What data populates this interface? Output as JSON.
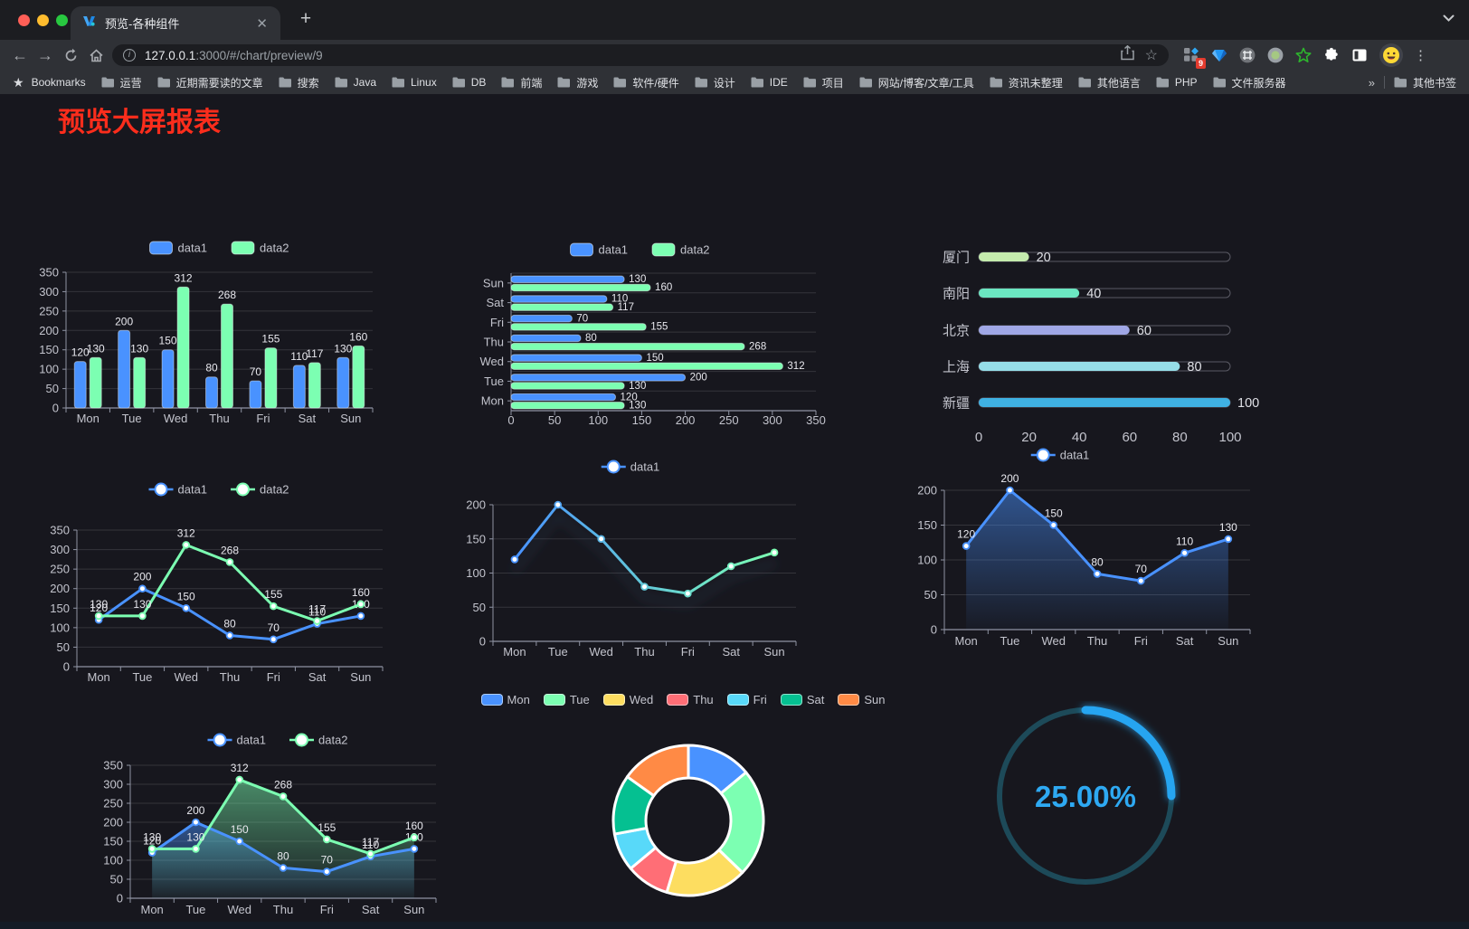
{
  "browser": {
    "tab_title": "预览-各种组件",
    "new_tab_label": "+",
    "url_host": "127.0.0.1",
    "url_rest": ":3000/#/chart/preview/9",
    "bookmarks_label": "Bookmarks",
    "bookmark_folders": [
      "运营",
      "近期需要读的文章",
      "搜索",
      "Java",
      "Linux",
      "DB",
      "前端",
      "游戏",
      "软件/硬件",
      "设计",
      "IDE",
      "项目",
      "网站/博客/文章/工具",
      "资讯未整理",
      "其他语言",
      "PHP",
      "文件服务器"
    ],
    "overflow_indicator": "»",
    "other_bookmarks_label": "其他书签",
    "extension_badge_count": "9"
  },
  "page": {
    "title": "预览大屏报表",
    "title_color": "#fb2d1c",
    "background": "#17171e"
  },
  "chart_data": [
    {
      "id": "bar-grouped",
      "type": "bar",
      "categories": [
        "Mon",
        "Tue",
        "Wed",
        "Thu",
        "Fri",
        "Sat",
        "Sun"
      ],
      "series": [
        {
          "name": "data1",
          "color": "#4992ff",
          "values": [
            120,
            200,
            150,
            80,
            70,
            110,
            130
          ]
        },
        {
          "name": "data2",
          "color": "#7cffb2",
          "values": [
            130,
            130,
            312,
            268,
            155,
            117,
            160
          ]
        }
      ],
      "ylim": [
        0,
        350
      ],
      "ytick": 50,
      "legend_position": "top",
      "value_labels": true,
      "grid": true
    },
    {
      "id": "bar-horizontal",
      "type": "bar-horizontal",
      "categories": [
        "Mon",
        "Tue",
        "Wed",
        "Thu",
        "Fri",
        "Sat",
        "Sun"
      ],
      "series": [
        {
          "name": "data1",
          "color": "#4992ff",
          "values": [
            120,
            200,
            150,
            80,
            70,
            110,
            130
          ]
        },
        {
          "name": "data2",
          "color": "#7cffb2",
          "values": [
            130,
            130,
            312,
            268,
            155,
            117,
            160
          ]
        }
      ],
      "xlim": [
        0,
        350
      ],
      "xtick": 50,
      "legend_position": "top",
      "value_labels": true,
      "grid": true
    },
    {
      "id": "city-progress",
      "type": "progress",
      "max": 100,
      "axis_ticks": [
        0,
        20,
        40,
        60,
        80,
        100
      ],
      "rows": [
        {
          "label": "厦门",
          "value": 20,
          "color": "#c4ebad"
        },
        {
          "label": "南阳",
          "value": 40,
          "color": "#6be6c1"
        },
        {
          "label": "北京",
          "value": 60,
          "color": "#a0a7e6"
        },
        {
          "label": "上海",
          "value": 80,
          "color": "#96dee8"
        },
        {
          "label": "新疆",
          "value": 100,
          "color": "#3fb1e3"
        }
      ]
    },
    {
      "id": "line-two",
      "type": "line",
      "categories": [
        "Mon",
        "Tue",
        "Wed",
        "Thu",
        "Fri",
        "Sat",
        "Sun"
      ],
      "series": [
        {
          "name": "data1",
          "color": "#4992ff",
          "values": [
            120,
            200,
            150,
            80,
            70,
            110,
            130
          ]
        },
        {
          "name": "data2",
          "color": "#7cffb2",
          "values": [
            130,
            130,
            312,
            268,
            155,
            117,
            160
          ]
        }
      ],
      "ylim": [
        0,
        350
      ],
      "ytick": 50,
      "legend_position": "top",
      "value_labels": true,
      "grid": true
    },
    {
      "id": "line-gradient",
      "type": "line",
      "categories": [
        "Mon",
        "Tue",
        "Wed",
        "Thu",
        "Fri",
        "Sat",
        "Sun"
      ],
      "series": [
        {
          "name": "data1",
          "color": "#4992ff",
          "gradient": [
            "#4992ff",
            "#7cffb2"
          ],
          "values": [
            120,
            200,
            150,
            80,
            70,
            110,
            130
          ]
        }
      ],
      "ylim": [
        0,
        200
      ],
      "ytick": 50,
      "legend_position": "top",
      "value_labels": false,
      "glow": true,
      "grid": true
    },
    {
      "id": "area-single",
      "type": "line",
      "categories": [
        "Mon",
        "Tue",
        "Wed",
        "Thu",
        "Fri",
        "Sat",
        "Sun"
      ],
      "series": [
        {
          "name": "data1",
          "color": "#4992ff",
          "area": true,
          "values": [
            120,
            200,
            150,
            80,
            70,
            110,
            130
          ]
        }
      ],
      "ylim": [
        0,
        200
      ],
      "ytick": 50,
      "legend_position": "top",
      "value_labels": true,
      "grid": true
    },
    {
      "id": "area-two",
      "type": "line",
      "categories": [
        "Mon",
        "Tue",
        "Wed",
        "Thu",
        "Fri",
        "Sat",
        "Sun"
      ],
      "series": [
        {
          "name": "data1",
          "color": "#4992ff",
          "area": true,
          "values": [
            120,
            200,
            150,
            80,
            70,
            110,
            130
          ]
        },
        {
          "name": "data2",
          "color": "#7cffb2",
          "area": true,
          "values": [
            130,
            130,
            312,
            268,
            155,
            117,
            160
          ]
        }
      ],
      "ylim": [
        0,
        350
      ],
      "ytick": 50,
      "legend_position": "top",
      "value_labels": true,
      "grid": true
    },
    {
      "id": "donut",
      "type": "donut",
      "slices": [
        {
          "label": "Mon",
          "value": 120,
          "color": "#4992ff"
        },
        {
          "label": "Tue",
          "value": 200,
          "color": "#7cffb2"
        },
        {
          "label": "Wed",
          "value": 150,
          "color": "#fddd60"
        },
        {
          "label": "Thu",
          "value": 80,
          "color": "#ff6e76"
        },
        {
          "label": "Fri",
          "value": 70,
          "color": "#58d9f9"
        },
        {
          "label": "Sat",
          "value": 110,
          "color": "#05c091"
        },
        {
          "label": "Sun",
          "value": 130,
          "color": "#ff8a45"
        }
      ],
      "legend_position": "top"
    },
    {
      "id": "gauge",
      "type": "gauge",
      "value_text": "25.00%",
      "percent": 25,
      "color": "#28a5f1",
      "track_color": "#1d4a59",
      "text_color": "#2ea9f2"
    }
  ]
}
